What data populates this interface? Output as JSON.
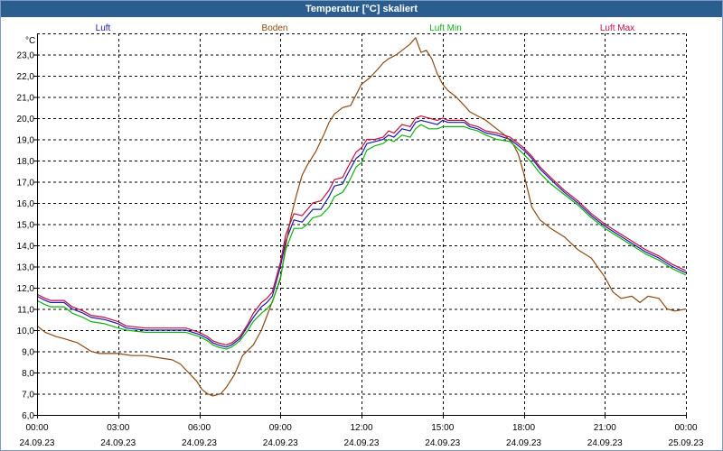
{
  "window": {
    "title": "Temperatur [°C] skaliert"
  },
  "colors": {
    "titlebar": "#2b5d8f",
    "grid": "#000000",
    "luft": "#1a1aa8",
    "boden": "#8b4a10",
    "luft_min": "#10b010",
    "luft_max": "#c01040"
  },
  "chart_data": {
    "type": "line",
    "title": "Temperatur [°C] skaliert",
    "ylabel": "°C",
    "xlabel": "",
    "xlim": [
      0,
      24
    ],
    "ylim": [
      6.0,
      24.0
    ],
    "grid": true,
    "legend_position": "top",
    "yticks": [
      6.0,
      7.0,
      8.0,
      9.0,
      10.0,
      11.0,
      12.0,
      13.0,
      14.0,
      15.0,
      16.0,
      17.0,
      18.0,
      19.0,
      20.0,
      21.0,
      22.0,
      23.0
    ],
    "ytick_labels": [
      "6,0",
      "7,0",
      "8,0",
      "9,0",
      "10,0",
      "11,0",
      "12,0",
      "13,0",
      "14,0",
      "15,0",
      "16,0",
      "17,0",
      "18,0",
      "19,0",
      "20,0",
      "21,0",
      "22,0",
      "23,0"
    ],
    "xticks": [
      {
        "hour": 0,
        "time": "00:00",
        "date": "24.09.23"
      },
      {
        "hour": 3,
        "time": "03:00",
        "date": "24.09.23"
      },
      {
        "hour": 6,
        "time": "06:00",
        "date": "24.09.23"
      },
      {
        "hour": 9,
        "time": "09:00",
        "date": "24.09.23"
      },
      {
        "hour": 12,
        "time": "12:00",
        "date": "24.09.23"
      },
      {
        "hour": 15,
        "time": "15:00",
        "date": "24.09.23"
      },
      {
        "hour": 18,
        "time": "18:00",
        "date": "24.09.23"
      },
      {
        "hour": 21,
        "time": "21:00",
        "date": "24.09.23"
      },
      {
        "hour": 24,
        "time": "00:00",
        "date": "25.09.23"
      }
    ],
    "series": [
      {
        "name": "Luft",
        "color": "#1a1aa8",
        "x": [
          0,
          0.3,
          0.5,
          1,
          1.3,
          1.7,
          2,
          2.5,
          3,
          3.3,
          4,
          5,
          5.5,
          6,
          6.3,
          6.5,
          6.7,
          7,
          7.2,
          7.5,
          7.8,
          8,
          8.3,
          8.5,
          8.7,
          9,
          9.2,
          9.5,
          9.8,
          10,
          10.2,
          10.5,
          10.8,
          11,
          11.3,
          11.5,
          11.8,
          12,
          12.2,
          12.5,
          12.8,
          13,
          13.2,
          13.5,
          13.8,
          14,
          14.2,
          14.5,
          14.8,
          15,
          15.2,
          15.5,
          15.8,
          16,
          16.3,
          16.6,
          17,
          17.5,
          18,
          18.3,
          18.6,
          19,
          19.5,
          20,
          20.5,
          21,
          21.5,
          22,
          22.5,
          23,
          23.5,
          24
        ],
        "y": [
          11.6,
          11.4,
          11.3,
          11.3,
          11.0,
          10.8,
          10.6,
          10.5,
          10.3,
          10.1,
          10.0,
          10.0,
          10.0,
          9.8,
          9.6,
          9.4,
          9.3,
          9.2,
          9.3,
          9.6,
          10.2,
          10.6,
          11.1,
          11.3,
          11.6,
          13.0,
          14.2,
          15.2,
          15.1,
          15.4,
          15.7,
          15.7,
          16.3,
          16.8,
          16.9,
          17.4,
          18.1,
          18.3,
          18.8,
          18.9,
          19.0,
          19.2,
          19.1,
          19.5,
          19.4,
          19.8,
          19.9,
          19.8,
          19.7,
          19.9,
          19.8,
          19.8,
          19.8,
          19.6,
          19.5,
          19.3,
          19.2,
          19.0,
          18.5,
          18.1,
          17.6,
          17.1,
          16.5,
          16.0,
          15.4,
          14.9,
          14.5,
          14.1,
          13.7,
          13.4,
          13.0,
          12.7
        ]
      },
      {
        "name": "Boden",
        "color": "#8b4a10",
        "x": [
          0,
          0.3,
          0.7,
          1,
          1.5,
          2,
          2.3,
          2.7,
          3,
          3.5,
          4,
          4.5,
          5,
          5.3,
          5.6,
          5.9,
          6.1,
          6.3,
          6.5,
          6.8,
          7,
          7.3,
          7.6,
          8,
          8.3,
          8.6,
          9,
          9.2,
          9.4,
          9.6,
          9.8,
          10,
          10.3,
          10.6,
          10.8,
          11,
          11.3,
          11.6,
          11.8,
          12,
          12.3,
          12.6,
          12.8,
          13,
          13.3,
          13.5,
          13.8,
          14,
          14.2,
          14.4,
          14.6,
          14.8,
          15,
          15.2,
          15.5,
          15.8,
          16,
          16.3,
          16.6,
          17,
          17.3,
          17.6,
          17.8,
          18,
          18.3,
          18.6,
          19,
          19.5,
          20,
          20.5,
          21,
          21.3,
          21.6,
          22,
          22.3,
          22.6,
          23,
          23.3,
          23.6,
          24
        ],
        "y": [
          10.2,
          9.9,
          9.7,
          9.6,
          9.4,
          9.0,
          8.9,
          8.9,
          8.9,
          8.8,
          8.8,
          8.7,
          8.6,
          8.4,
          8.0,
          7.6,
          7.2,
          7.0,
          6.9,
          7.0,
          7.3,
          7.9,
          8.8,
          9.3,
          10.0,
          11.0,
          12.4,
          14.0,
          15.4,
          16.4,
          17.3,
          17.8,
          18.4,
          19.2,
          19.8,
          20.2,
          20.5,
          20.6,
          21.1,
          21.6,
          21.9,
          22.3,
          22.6,
          22.8,
          23.0,
          23.2,
          23.5,
          23.8,
          23.1,
          23.2,
          22.8,
          22.1,
          21.6,
          21.3,
          21.0,
          20.6,
          20.3,
          20.1,
          19.9,
          19.5,
          19.2,
          18.8,
          18.3,
          17.4,
          15.8,
          15.2,
          14.8,
          14.4,
          13.8,
          13.4,
          12.5,
          11.8,
          11.5,
          11.6,
          11.3,
          11.6,
          11.5,
          11.0,
          10.9,
          11.0
        ]
      },
      {
        "name": "Luft Min",
        "color": "#10b010",
        "x": [
          0,
          0.3,
          0.5,
          1,
          1.3,
          1.7,
          2,
          2.5,
          3,
          3.3,
          4,
          5,
          5.5,
          6,
          6.3,
          6.5,
          6.7,
          7,
          7.2,
          7.5,
          7.8,
          8,
          8.3,
          8.5,
          8.7,
          9,
          9.2,
          9.5,
          9.8,
          10,
          10.2,
          10.5,
          10.8,
          11,
          11.3,
          11.5,
          11.8,
          12,
          12.2,
          12.5,
          12.8,
          13,
          13.2,
          13.5,
          13.8,
          14,
          14.2,
          14.5,
          14.8,
          15,
          15.2,
          15.5,
          15.8,
          16,
          16.3,
          16.6,
          17,
          17.5,
          18,
          18.3,
          18.6,
          19,
          19.5,
          20,
          20.5,
          21,
          21.5,
          22,
          22.5,
          23,
          23.5,
          24
        ],
        "y": [
          11.4,
          11.2,
          11.1,
          11.1,
          10.8,
          10.6,
          10.4,
          10.3,
          10.1,
          10.0,
          9.9,
          9.9,
          9.9,
          9.7,
          9.5,
          9.3,
          9.2,
          9.1,
          9.2,
          9.5,
          10.0,
          10.4,
          10.8,
          11.0,
          11.3,
          12.5,
          13.8,
          14.8,
          14.8,
          15.0,
          15.3,
          15.4,
          15.8,
          16.3,
          16.5,
          16.9,
          17.7,
          17.9,
          18.5,
          18.7,
          18.8,
          19.0,
          18.9,
          19.2,
          19.1,
          19.5,
          19.7,
          19.5,
          19.5,
          19.6,
          19.6,
          19.6,
          19.6,
          19.5,
          19.4,
          19.2,
          19.0,
          18.9,
          18.3,
          17.9,
          17.4,
          16.9,
          16.4,
          15.9,
          15.3,
          14.8,
          14.4,
          14.0,
          13.6,
          13.3,
          12.9,
          12.6
        ]
      },
      {
        "name": "Luft Max",
        "color": "#c01040",
        "x": [
          0,
          0.3,
          0.5,
          1,
          1.3,
          1.7,
          2,
          2.5,
          3,
          3.3,
          4,
          5,
          5.5,
          6,
          6.3,
          6.5,
          6.7,
          7,
          7.2,
          7.5,
          7.8,
          8,
          8.3,
          8.5,
          8.7,
          9,
          9.2,
          9.5,
          9.8,
          10,
          10.2,
          10.5,
          10.8,
          11,
          11.3,
          11.5,
          11.8,
          12,
          12.2,
          12.5,
          12.8,
          13,
          13.2,
          13.5,
          13.8,
          14,
          14.2,
          14.5,
          14.8,
          15,
          15.2,
          15.5,
          15.8,
          16,
          16.3,
          16.6,
          17,
          17.5,
          18,
          18.3,
          18.6,
          19,
          19.5,
          20,
          20.5,
          21,
          21.5,
          22,
          22.5,
          23,
          23.5,
          24
        ],
        "y": [
          11.7,
          11.5,
          11.4,
          11.4,
          11.1,
          10.9,
          10.7,
          10.6,
          10.4,
          10.2,
          10.1,
          10.1,
          10.1,
          9.9,
          9.7,
          9.5,
          9.4,
          9.3,
          9.4,
          9.7,
          10.3,
          10.8,
          11.3,
          11.5,
          11.8,
          13.2,
          14.5,
          15.5,
          15.4,
          15.7,
          16.0,
          16.1,
          16.6,
          17.1,
          17.2,
          17.7,
          18.4,
          18.6,
          19.0,
          19.0,
          19.1,
          19.4,
          19.3,
          19.7,
          19.6,
          20.0,
          20.1,
          20.0,
          19.9,
          20.0,
          19.9,
          19.9,
          19.9,
          19.7,
          19.6,
          19.4,
          19.3,
          19.1,
          18.6,
          18.2,
          17.7,
          17.2,
          16.6,
          16.1,
          15.5,
          15.0,
          14.6,
          14.2,
          13.8,
          13.5,
          13.1,
          12.8
        ]
      }
    ]
  }
}
